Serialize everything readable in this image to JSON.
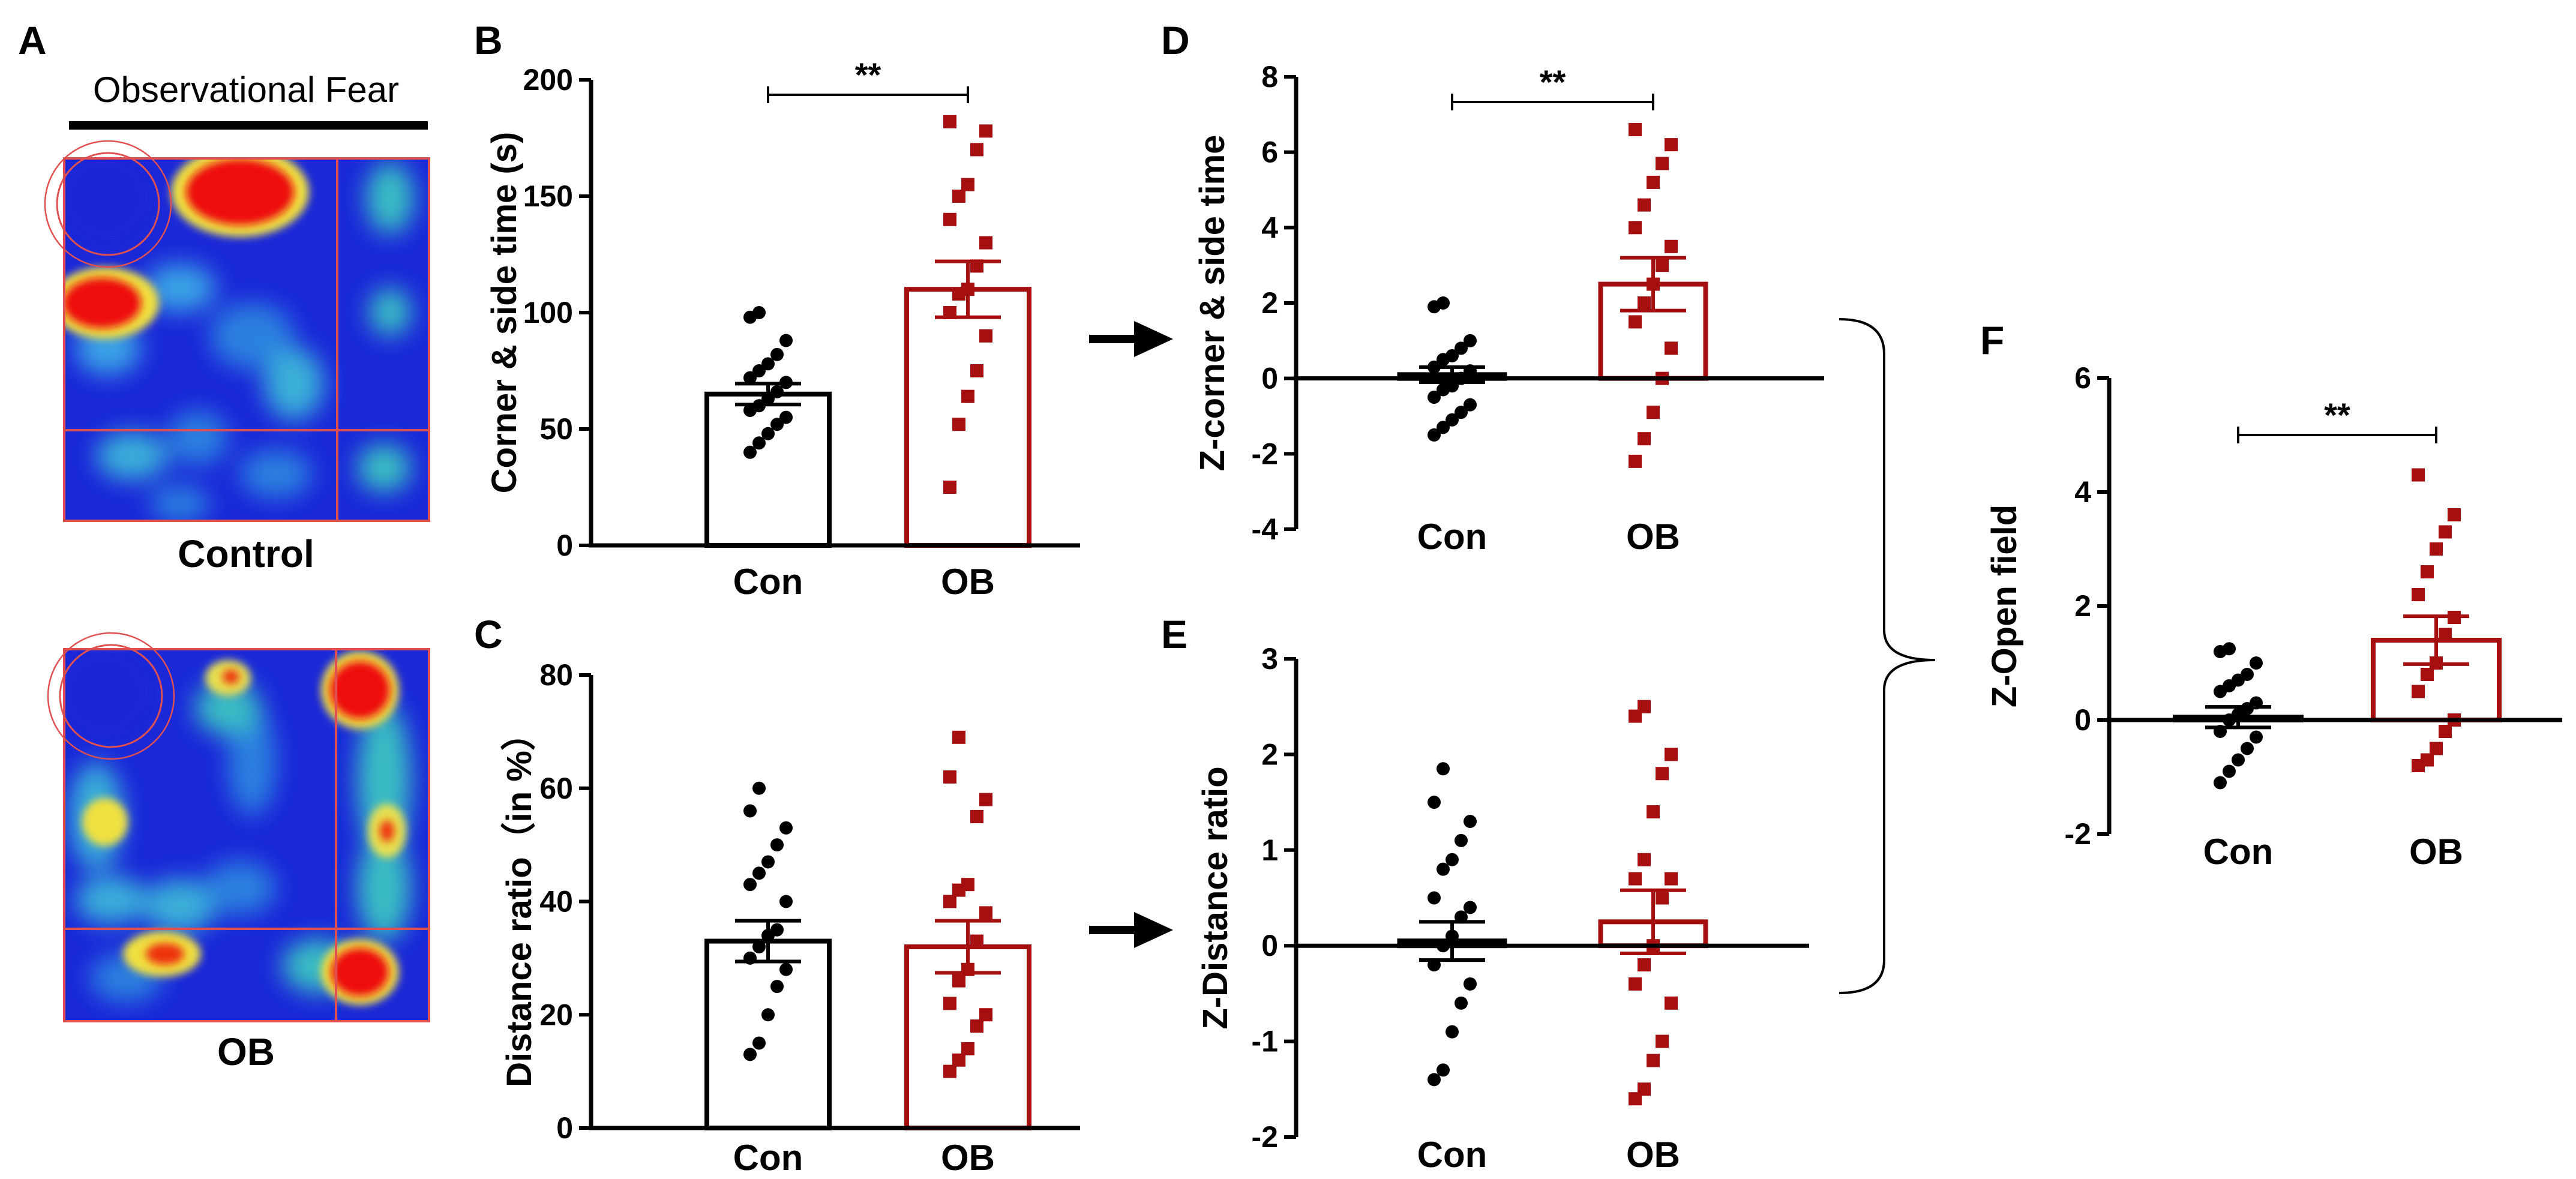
{
  "figure": {
    "heatmap_title": "Observational Fear",
    "heatmap_labels": [
      "Control",
      "OB"
    ]
  },
  "colors": {
    "control": "#000000",
    "ob": "#A50F0F",
    "heatmap_bg": "#1A28D8",
    "grid_line": "#E05050"
  },
  "chart_data": [
    {
      "panel": "B",
      "type": "bar",
      "ylabel": "Corner & side time (s)",
      "categories": [
        "Con",
        "OB"
      ],
      "values": [
        65,
        110
      ],
      "sem": [
        4.5,
        12
      ],
      "ylim": [
        0,
        200
      ],
      "yticks": [
        0,
        50,
        100,
        150,
        200
      ],
      "significance": "**",
      "points": [
        [
          40,
          44,
          48,
          52,
          55,
          58,
          60,
          63,
          66,
          70,
          72,
          75,
          78,
          82,
          88,
          98,
          100
        ],
        [
          25,
          52,
          64,
          75,
          90,
          100,
          108,
          110,
          120,
          130,
          140,
          150,
          155,
          170,
          178,
          182
        ]
      ]
    },
    {
      "panel": "C",
      "type": "bar",
      "ylabel": "Distance ratio（in %）",
      "categories": [
        "Con",
        "OB"
      ],
      "values": [
        33,
        32
      ],
      "sem": [
        3.6,
        4.6
      ],
      "ylim": [
        0,
        80
      ],
      "yticks": [
        0,
        20,
        40,
        60,
        80
      ],
      "significance": "",
      "points": [
        [
          13,
          15,
          20,
          25,
          28,
          30,
          32,
          34,
          35,
          40,
          43,
          45,
          47,
          50,
          53,
          56,
          60
        ],
        [
          10,
          12,
          14,
          18,
          20,
          22,
          26,
          28,
          33,
          38,
          40,
          42,
          43,
          55,
          58,
          62,
          69
        ]
      ]
    },
    {
      "panel": "D",
      "type": "bar",
      "ylabel": "Z-corner & side time",
      "categories": [
        "Con",
        "OB"
      ],
      "values": [
        0.1,
        2.5
      ],
      "sem": [
        0.2,
        0.7
      ],
      "ylim": [
        -4,
        8
      ],
      "yticks": [
        -4,
        -2,
        0,
        2,
        4,
        6,
        8
      ],
      "significance": "**",
      "points": [
        [
          -1.5,
          -1.3,
          -1.1,
          -0.9,
          -0.7,
          -0.5,
          -0.3,
          -0.2,
          0.0,
          0.2,
          0.3,
          0.5,
          0.6,
          0.8,
          1.0,
          1.9,
          2.0
        ],
        [
          -2.2,
          -1.6,
          -0.9,
          0.0,
          0.8,
          1.5,
          2.0,
          2.5,
          3.0,
          3.5,
          4.0,
          4.6,
          5.2,
          5.7,
          6.2,
          6.6
        ]
      ]
    },
    {
      "panel": "E",
      "type": "bar",
      "ylabel": "Z-Distance ratio",
      "categories": [
        "Con",
        "OB"
      ],
      "values": [
        0.05,
        0.25
      ],
      "sem": [
        0.2,
        0.33
      ],
      "ylim": [
        -2,
        3
      ],
      "yticks": [
        -2,
        -1,
        0,
        1,
        2,
        3
      ],
      "significance": "",
      "points": [
        [
          -1.4,
          -1.3,
          -0.9,
          -0.6,
          -0.4,
          -0.2,
          0.0,
          0.1,
          0.3,
          0.4,
          0.5,
          0.8,
          0.9,
          1.1,
          1.3,
          1.5,
          1.85
        ],
        [
          -1.6,
          -1.5,
          -1.2,
          -1.0,
          -0.6,
          -0.4,
          -0.2,
          0.0,
          0.5,
          0.7,
          0.7,
          0.9,
          1.4,
          1.8,
          2.0,
          2.4,
          2.5
        ]
      ]
    },
    {
      "panel": "F",
      "type": "bar",
      "ylabel": "Z-Open field",
      "categories": [
        "Con",
        "OB"
      ],
      "values": [
        0.05,
        1.4
      ],
      "sem": [
        0.18,
        0.42
      ],
      "ylim": [
        -2,
        6
      ],
      "yticks": [
        -2,
        0,
        2,
        4,
        6
      ],
      "significance": "**",
      "points": [
        [
          -1.1,
          -0.9,
          -0.7,
          -0.5,
          -0.3,
          -0.2,
          0.0,
          0.1,
          0.2,
          0.3,
          0.5,
          0.6,
          0.7,
          0.8,
          1.0,
          1.2,
          1.25
        ],
        [
          -0.8,
          -0.7,
          -0.5,
          -0.2,
          0.0,
          0.5,
          0.8,
          1.0,
          1.5,
          1.8,
          2.2,
          2.6,
          3.0,
          3.3,
          3.6,
          4.3
        ]
      ]
    }
  ]
}
